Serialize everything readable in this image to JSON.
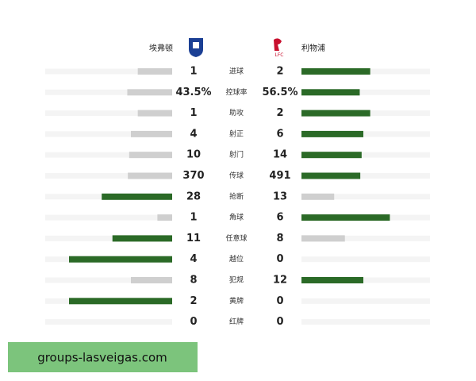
{
  "header": {
    "home_team": "埃弗顿",
    "away_team": "利物浦"
  },
  "rows": [
    {
      "label": "进球",
      "home": 1,
      "away": 2
    },
    {
      "label": "控球率",
      "home": {
        "value": 43.5,
        "label": "43.5%"
      },
      "away": {
        "value": 56.5,
        "label": "56.5%"
      }
    },
    {
      "label": "助攻",
      "home": 1,
      "away": 2
    },
    {
      "label": "射正",
      "home": 4,
      "away": 6
    },
    {
      "label": "射门",
      "home": 10,
      "away": 14
    },
    {
      "label": "传球",
      "home": 370,
      "away": 491
    },
    {
      "label": "抢断",
      "home": 28,
      "away": 13
    },
    {
      "label": "角球",
      "home": 1,
      "away": 6
    },
    {
      "label": "任意球",
      "home": 11,
      "away": 8
    },
    {
      "label": "越位",
      "home": 4,
      "away": 0
    },
    {
      "label": "犯规",
      "home": 8,
      "away": 12
    },
    {
      "label": "黄牌",
      "home": 2,
      "away": 0
    },
    {
      "label": "红牌",
      "home": 0,
      "away": 0
    }
  ],
  "watermark": "groups-lasveigas.com"
}
